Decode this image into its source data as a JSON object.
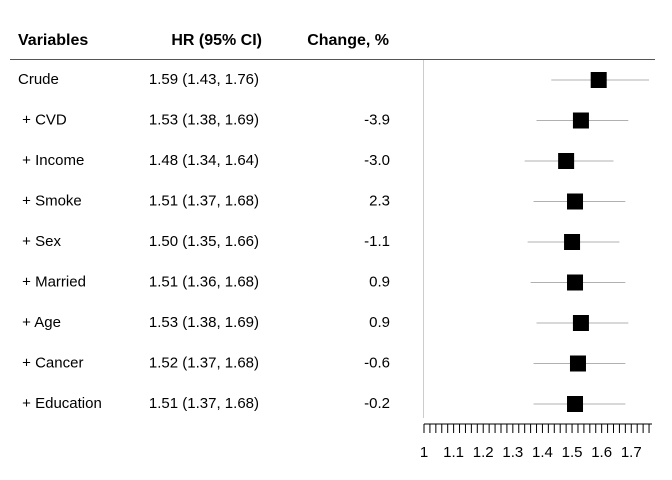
{
  "chart_data": {
    "type": "forest",
    "columns": [
      "Variables",
      "HR (95% CI)",
      "Change, %"
    ],
    "categories": [
      "Crude",
      " + CVD",
      " + Income",
      " + Smoke",
      " + Sex",
      " + Married",
      " + Age",
      " + Cancer",
      " + Education"
    ],
    "values": [
      1.59,
      1.53,
      1.48,
      1.51,
      1.5,
      1.51,
      1.53,
      1.52,
      1.51
    ],
    "lower": [
      1.43,
      1.38,
      1.34,
      1.37,
      1.35,
      1.36,
      1.38,
      1.37,
      1.37
    ],
    "upper": [
      1.76,
      1.69,
      1.64,
      1.68,
      1.66,
      1.68,
      1.69,
      1.68,
      1.68
    ],
    "value_labels": [
      "1.59 (1.43, 1.76)",
      "1.53 (1.38, 1.69)",
      "1.48 (1.34, 1.64)",
      "1.51 (1.37, 1.68)",
      "1.50 (1.35, 1.66)",
      "1.51 (1.36, 1.68)",
      "1.53 (1.38, 1.69)",
      "1.52 (1.37, 1.68)",
      "1.51 (1.37, 1.68)"
    ],
    "change": [
      null,
      "-3.9",
      "-3.0",
      "2.3",
      "-1.1",
      "0.9",
      "0.9",
      "-0.6",
      "-0.2"
    ],
    "color": "#000000",
    "ci_color": "#b0b0b0",
    "xlim": [
      1,
      1.77
    ],
    "xticks": [
      1,
      1.1,
      1.2,
      1.3,
      1.4,
      1.5,
      1.6,
      1.7
    ],
    "minor_xticks": [
      1.02,
      1.04,
      1.06,
      1.08,
      1.12,
      1.14,
      1.16,
      1.18,
      1.22,
      1.24,
      1.26,
      1.28,
      1.32,
      1.34,
      1.36,
      1.38,
      1.42,
      1.44,
      1.46,
      1.48,
      1.52,
      1.54,
      1.56,
      1.58,
      1.62,
      1.64,
      1.66,
      1.68,
      1.72,
      1.74,
      1.76
    ]
  }
}
